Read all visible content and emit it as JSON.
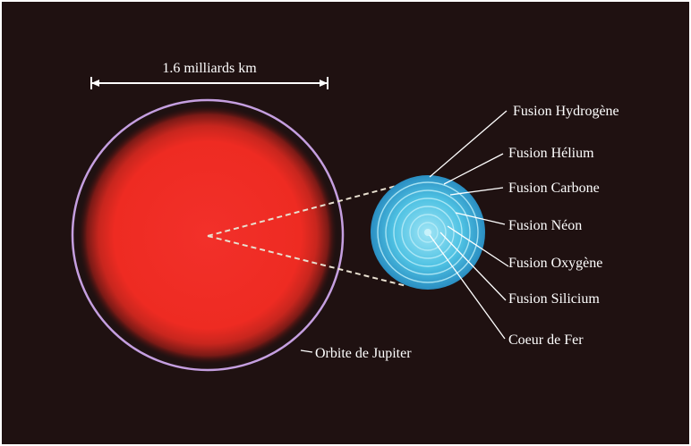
{
  "diagram": {
    "scale_label": "1.6 milliards km",
    "orbit_label": "Orbite de Jupiter",
    "shell_labels": [
      "Fusion Hydrogène",
      "Fusion Hélium",
      "Fusion Carbone",
      "Fusion Néon",
      "Fusion Oxygène",
      "Fusion Silicium",
      "Coeur de Fer"
    ],
    "colors": {
      "background": "#1f1111",
      "star": "#ee2a22",
      "orbit": "#c59fe0",
      "core": "#48bfe0",
      "text": "#ffffff"
    }
  }
}
